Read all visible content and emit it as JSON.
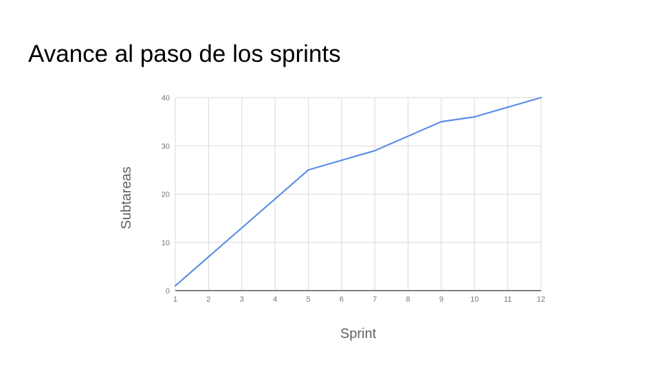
{
  "slide": {
    "title": "Avance al paso de los sprints"
  },
  "chart_data": {
    "type": "line",
    "title": "",
    "xlabel": "Sprint",
    "ylabel": "Subtareas",
    "x": [
      1,
      2,
      3,
      4,
      5,
      6,
      7,
      8,
      9,
      10,
      11,
      12
    ],
    "series": [
      {
        "values": [
          1,
          7,
          13,
          19,
          25,
          27,
          29,
          32,
          35,
          36,
          38,
          40
        ]
      }
    ],
    "xlim": [
      1,
      12
    ],
    "ylim": [
      0,
      40
    ],
    "yticks": [
      0,
      10,
      20,
      30,
      40
    ],
    "xticks": [
      1,
      2,
      3,
      4,
      5,
      6,
      7,
      8,
      9,
      10,
      11,
      12
    ],
    "grid": true,
    "legend": "none",
    "colors": {
      "line": "#5b8ee6",
      "grid": "#d9d9d9",
      "axis": "#333333"
    }
  }
}
